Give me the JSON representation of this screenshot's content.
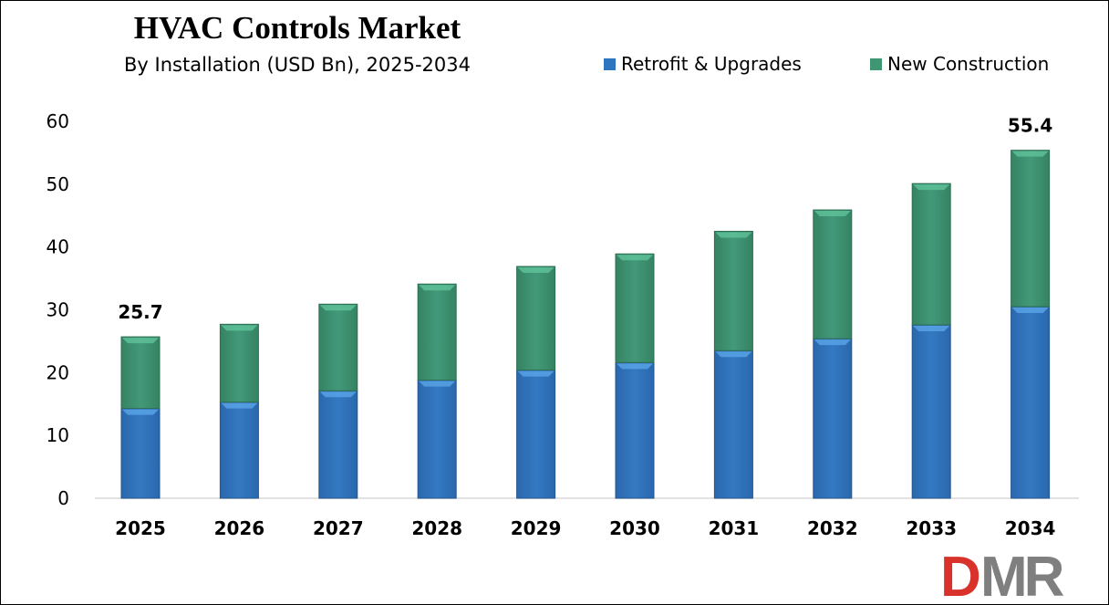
{
  "chart_data": {
    "type": "bar",
    "stacked": true,
    "title": "HVAC Controls Market",
    "subtitle": "By Installation (USD Bn), 2025-2034",
    "categories": [
      "2025",
      "2026",
      "2027",
      "2028",
      "2029",
      "2030",
      "2031",
      "2032",
      "2033",
      "2034"
    ],
    "series": [
      {
        "name": "Retrofit & Upgrades",
        "color": "#2e75c0",
        "values": [
          14.3,
          15.3,
          17.1,
          18.8,
          20.4,
          21.6,
          23.5,
          25.4,
          27.6,
          30.5
        ]
      },
      {
        "name": "New Construction",
        "color": "#3e9672",
        "values": [
          11.4,
          12.4,
          13.8,
          15.3,
          16.5,
          17.3,
          19.0,
          20.5,
          22.5,
          24.9
        ]
      }
    ],
    "totals": [
      25.7,
      27.7,
      30.9,
      34.1,
      36.9,
      38.9,
      42.5,
      45.9,
      50.1,
      55.4
    ],
    "data_labels": [
      {
        "category": "2025",
        "text": "25.7"
      },
      {
        "category": "2034",
        "text": "55.4"
      }
    ],
    "ylim": [
      0,
      60
    ],
    "yticks": [
      0,
      10,
      20,
      30,
      40,
      50,
      60
    ],
    "xlabel": "",
    "ylabel": "",
    "grid": false,
    "legend_position": "top-right"
  },
  "logo": {
    "text": "DMR",
    "colors": [
      "#d9322b",
      "#7f7f7f"
    ]
  }
}
